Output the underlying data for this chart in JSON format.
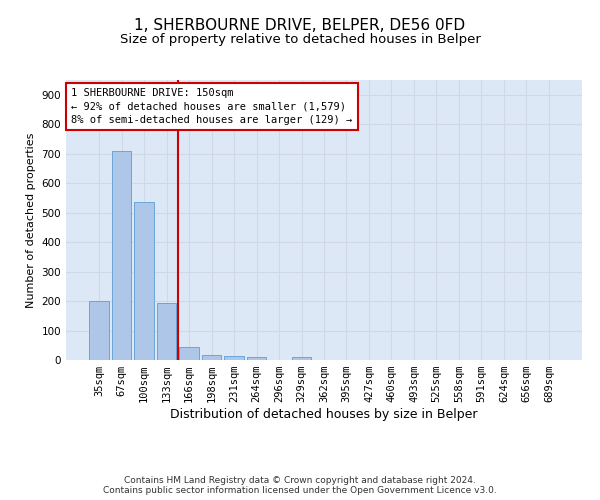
{
  "title": "1, SHERBOURNE DRIVE, BELPER, DE56 0FD",
  "subtitle": "Size of property relative to detached houses in Belper",
  "xlabel": "Distribution of detached houses by size in Belper",
  "ylabel": "Number of detached properties",
  "categories": [
    "35sqm",
    "67sqm",
    "100sqm",
    "133sqm",
    "166sqm",
    "198sqm",
    "231sqm",
    "264sqm",
    "296sqm",
    "329sqm",
    "362sqm",
    "395sqm",
    "427sqm",
    "460sqm",
    "493sqm",
    "525sqm",
    "558sqm",
    "591sqm",
    "624sqm",
    "656sqm",
    "689sqm"
  ],
  "values": [
    200,
    710,
    535,
    193,
    43,
    18,
    13,
    9,
    0,
    9,
    0,
    0,
    0,
    0,
    0,
    0,
    0,
    0,
    0,
    0,
    0
  ],
  "bar_color": "#aec6e8",
  "bar_edge_color": "#5a9fd4",
  "vline_x": 3.5,
  "vline_color": "#cc0000",
  "annotation_line1": "1 SHERBOURNE DRIVE: 150sqm",
  "annotation_line2": "← 92% of detached houses are smaller (1,579)",
  "annotation_line3": "8% of semi-detached houses are larger (129) →",
  "annotation_box_color": "#cc0000",
  "annotation_box_facecolor": "white",
  "ylim": [
    0,
    950
  ],
  "yticks": [
    0,
    100,
    200,
    300,
    400,
    500,
    600,
    700,
    800,
    900
  ],
  "grid_color": "#d0d8e8",
  "background_color": "#dce8f5",
  "footer_text": "Contains HM Land Registry data © Crown copyright and database right 2024.\nContains public sector information licensed under the Open Government Licence v3.0.",
  "title_fontsize": 11,
  "subtitle_fontsize": 9.5,
  "xlabel_fontsize": 9,
  "ylabel_fontsize": 8,
  "tick_fontsize": 7.5,
  "annotation_fontsize": 7.5,
  "footer_fontsize": 6.5
}
